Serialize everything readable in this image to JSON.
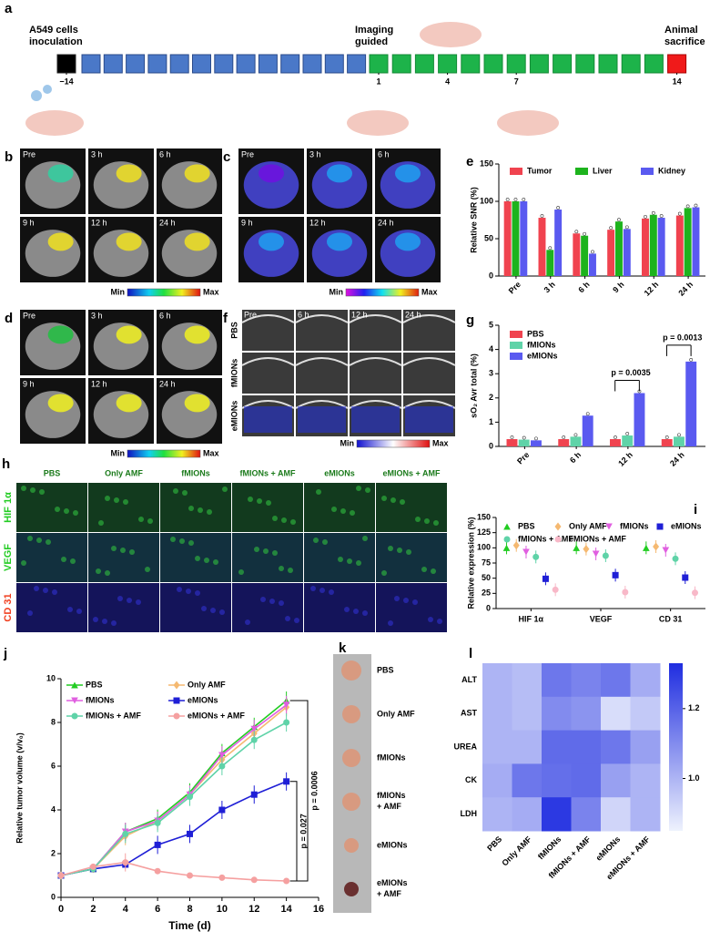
{
  "timeline": {
    "panel_label": "a",
    "events": [
      "A549 cells inoculation",
      "Imaging guided",
      "Animal sacrifice"
    ],
    "days": [
      {
        "value": -14,
        "label": "−14"
      },
      1,
      4,
      7,
      14
    ]
  },
  "imaging": [
    {
      "panel_label": "b",
      "frames": [
        "Pre",
        "3 h",
        "6 h",
        "9 h",
        "12 h",
        "24 h"
      ],
      "scale": [
        "Min",
        "Max"
      ]
    },
    {
      "panel_label": "c",
      "frames": [
        "Pre",
        "3 h",
        "6 h",
        "9 h",
        "12 h",
        "24 h"
      ],
      "scale": [
        "Min",
        "Max"
      ]
    },
    {
      "panel_label": "d",
      "frames": [
        "Pre",
        "3 h",
        "6 h",
        "9 h",
        "12 h",
        "24 h"
      ],
      "scale": [
        "Min",
        "Max"
      ]
    },
    {
      "panel_label": "f",
      "frames": [
        "Pre",
        "6 h",
        "12 h",
        "24 h"
      ],
      "rows": [
        "PBS",
        "fMIONs",
        "eMIONs"
      ],
      "scale": [
        "Min",
        "Max"
      ]
    }
  ],
  "immunofluorescence": {
    "panel_label": "h",
    "columns": [
      "PBS",
      "Only AMF",
      "fMIONs",
      "fMIONs + AMF",
      "eMIONs",
      "eMIONs + AMF"
    ],
    "rows": [
      "HIF 1α",
      "VEGF",
      "CD 31"
    ]
  },
  "tumor_photo": {
    "panel_label": "k",
    "groups": [
      "PBS",
      "Only AMF",
      "fMIONs",
      "fMIONs + AMF",
      "eMIONs",
      "eMIONs + AMF"
    ]
  },
  "chart_data": [
    {
      "type": "bar",
      "panel_label": "e",
      "y_label": "Relative SNR (%)",
      "categories": [
        "Pre",
        "3 h",
        "6 h",
        "9 h",
        "12 h",
        "24 h"
      ],
      "series": [
        {
          "name": "Tumor",
          "color": "#f0434f",
          "values": [
            100,
            78,
            57,
            62,
            77,
            81
          ]
        },
        {
          "name": "Liver",
          "color": "#1db31d",
          "values": [
            100,
            35,
            54,
            73,
            82,
            91
          ]
        },
        {
          "name": "Kidney",
          "color": "#5a5af0",
          "values": [
            100,
            89,
            30,
            63,
            78,
            92
          ]
        }
      ],
      "ylim": [
        0,
        150
      ],
      "yticks": [
        0,
        50,
        100,
        150
      ]
    },
    {
      "type": "bar",
      "panel_label": "g",
      "y_label": "sO₂ Avr total (%)",
      "categories": [
        "Pre",
        "6 h",
        "12 h",
        "24 h"
      ],
      "series": [
        {
          "name": "PBS",
          "color": "#f0434f",
          "values": [
            0.3,
            0.3,
            0.3,
            0.3
          ]
        },
        {
          "name": "fMIONs",
          "color": "#5fd3a8",
          "values": [
            0.28,
            0.4,
            0.45,
            0.4
          ]
        },
        {
          "name": "eMIONs",
          "color": "#5a5af0",
          "values": [
            0.25,
            1.27,
            2.2,
            3.5
          ]
        }
      ],
      "ylim": [
        0,
        5
      ],
      "yticks": [
        0,
        1,
        2,
        3,
        4,
        5
      ],
      "annotations": [
        "p = 0.0035",
        "p = 0.0013"
      ]
    },
    {
      "type": "dot",
      "panel_label": "i",
      "y_label": "Relative expression (%)",
      "categories": [
        "HIF 1α",
        "VEGF",
        "CD 31"
      ],
      "series": [
        {
          "name": "PBS",
          "color": "#22cc22",
          "marker": "triangle",
          "values": [
            100,
            100,
            100
          ]
        },
        {
          "name": "Only AMF",
          "color": "#f5b971",
          "marker": "diamond",
          "values": [
            104,
            98,
            102
          ]
        },
        {
          "name": "fMIONs",
          "color": "#e05fe0",
          "marker": "triangle-down",
          "values": [
            93,
            90,
            96
          ]
        },
        {
          "name": "eMIONs",
          "color": "#1f1fd6",
          "marker": "square",
          "values": [
            49,
            55,
            51
          ]
        },
        {
          "name": "fMIONs + AMF",
          "color": "#5fd3a8",
          "marker": "circle",
          "values": [
            85,
            87,
            82
          ]
        },
        {
          "name": "eMIONs + AMF",
          "color": "#f8b8c8",
          "marker": "circle",
          "values": [
            31,
            27,
            26
          ]
        }
      ],
      "ylim": [
        0,
        150
      ],
      "yticks": [
        0,
        25,
        50,
        75,
        100,
        125,
        150
      ]
    },
    {
      "type": "line",
      "panel_label": "j",
      "x_label": "Time (d)",
      "y_label": "Relative tumor volume (v/v₀)",
      "x": [
        0,
        2,
        4,
        6,
        8,
        10,
        12,
        14
      ],
      "series": [
        {
          "name": "PBS",
          "color": "#22cc22",
          "marker": "triangle",
          "values": [
            1,
            1.3,
            3.0,
            3.6,
            4.8,
            6.6,
            7.8,
            9.0
          ]
        },
        {
          "name": "Only AMF",
          "color": "#f5b971",
          "marker": "diamond",
          "values": [
            1,
            1.3,
            2.8,
            3.5,
            4.7,
            6.3,
            7.5,
            8.7
          ]
        },
        {
          "name": "fMIONs",
          "color": "#e05fe0",
          "marker": "triangle-down",
          "values": [
            1,
            1.3,
            3.0,
            3.5,
            4.7,
            6.5,
            7.7,
            8.8
          ]
        },
        {
          "name": "eMIONs",
          "color": "#1f1fd6",
          "marker": "square",
          "values": [
            1,
            1.3,
            1.5,
            2.4,
            2.9,
            4.0,
            4.7,
            5.3
          ]
        },
        {
          "name": "fMIONs + AMF",
          "color": "#5fd3a8",
          "marker": "circle",
          "values": [
            1,
            1.3,
            2.9,
            3.4,
            4.6,
            6.0,
            7.2,
            8.0
          ]
        },
        {
          "name": "eMIONs + AMF",
          "color": "#f5a0a0",
          "marker": "circle",
          "values": [
            1,
            1.4,
            1.6,
            1.2,
            1.0,
            0.9,
            0.8,
            0.75
          ]
        }
      ],
      "xlim": [
        0,
        16
      ],
      "xticks": [
        0,
        2,
        4,
        6,
        8,
        10,
        12,
        14,
        16
      ],
      "ylim": [
        0,
        10
      ],
      "yticks": [
        0,
        2,
        4,
        6,
        8,
        10
      ],
      "annotations": [
        "p = 0.0006",
        "p = 0.027"
      ]
    },
    {
      "type": "heatmap",
      "panel_label": "l",
      "rows": [
        "ALT",
        "AST",
        "UREA",
        "CK",
        "LDH"
      ],
      "columns": [
        "PBS",
        "Only AMF",
        "fMIONs",
        "fMIONs + AMF",
        "eMIONs",
        "eMIONs + AMF"
      ],
      "values": [
        [
          1.0,
          0.98,
          1.15,
          1.12,
          1.15,
          1.02
        ],
        [
          1.0,
          0.98,
          1.1,
          1.08,
          0.9,
          0.95
        ],
        [
          1.0,
          1.0,
          1.18,
          1.18,
          1.15,
          1.05
        ],
        [
          1.02,
          1.15,
          1.17,
          1.18,
          1.05,
          1.0
        ],
        [
          1.0,
          1.02,
          1.3,
          1.12,
          0.92,
          1.0
        ]
      ],
      "clim": [
        0.85,
        1.33
      ],
      "colors": [
        "#eef2fd",
        "#1f2de0"
      ],
      "colorbar_ticks": [
        {
          "value": 1,
          "label": "1.0"
        },
        1.2
      ]
    }
  ]
}
